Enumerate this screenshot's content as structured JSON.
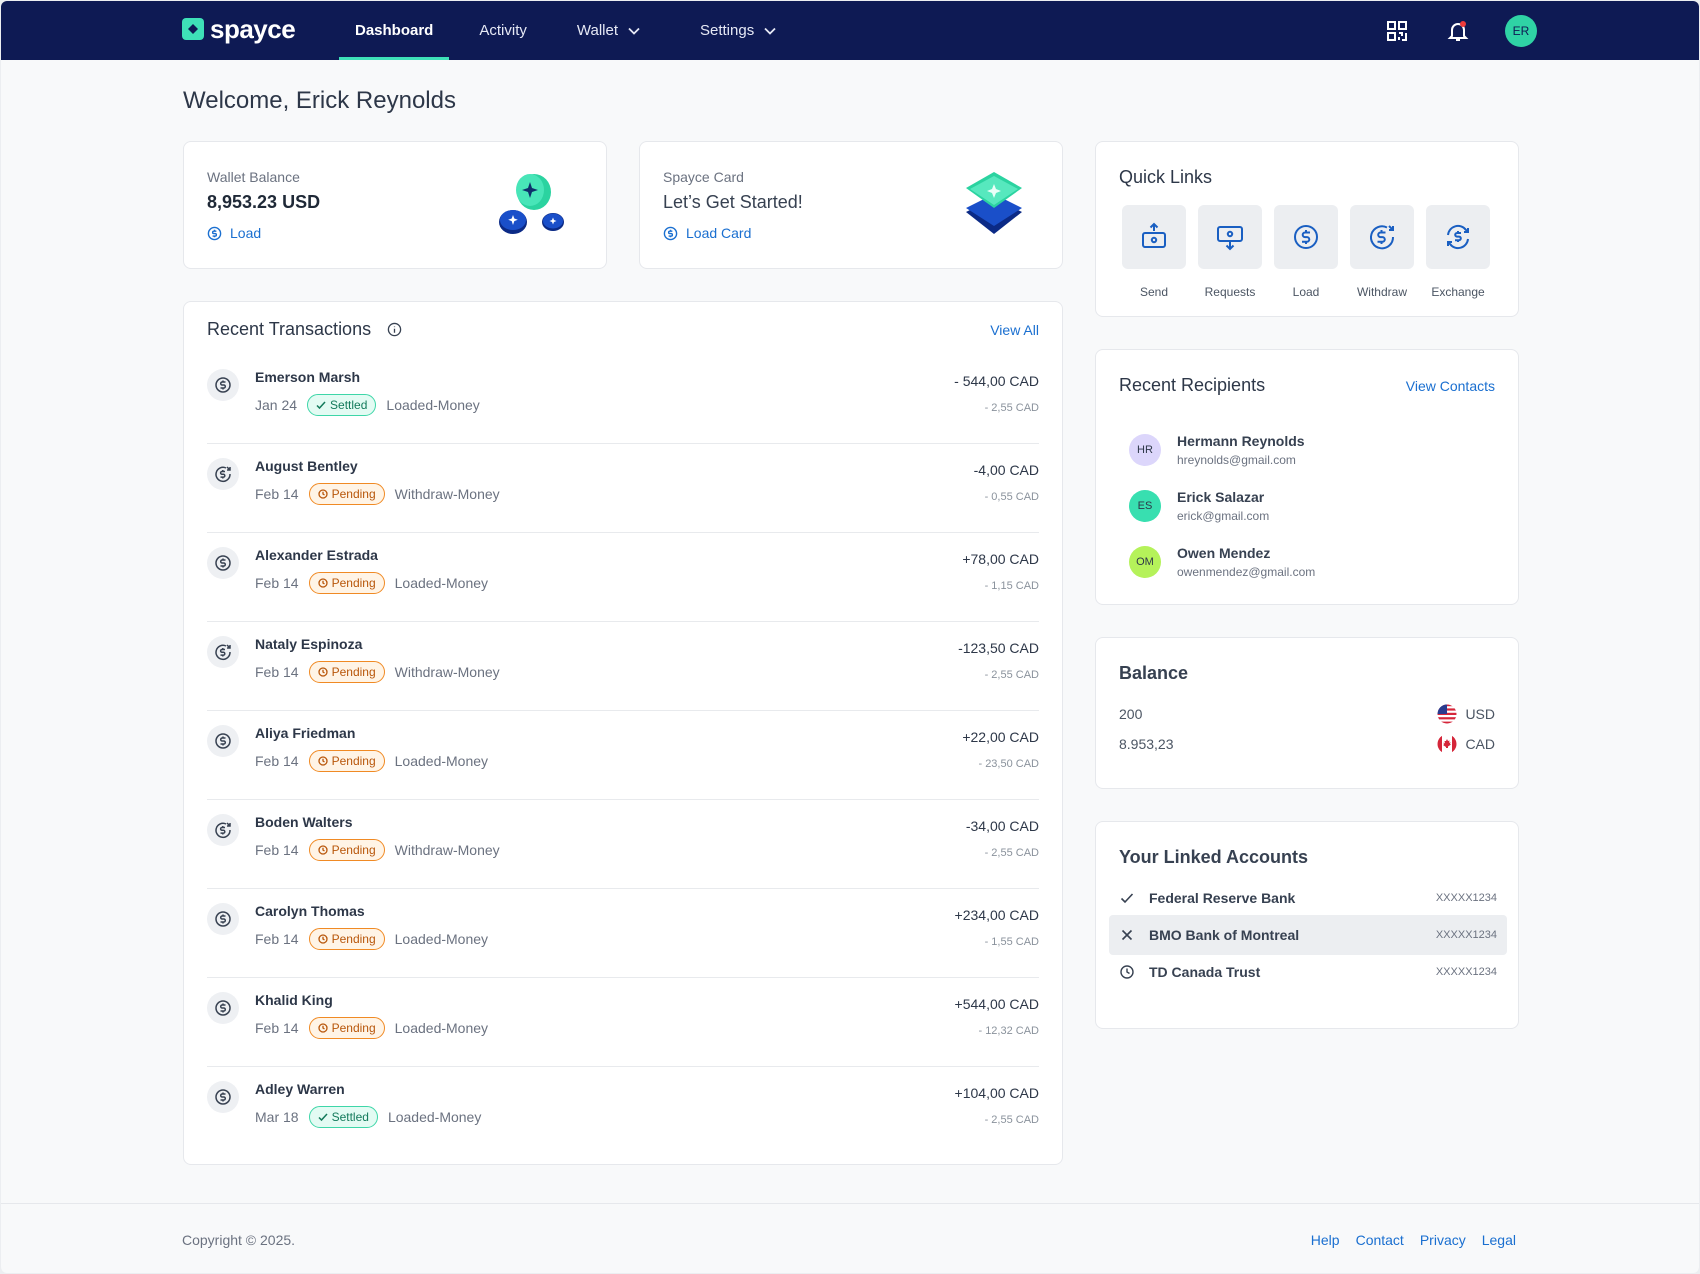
{
  "app": {
    "logo": "spayce"
  },
  "nav": {
    "links": [
      {
        "label": "Dashboard"
      },
      {
        "label": "Activity"
      },
      {
        "label": "Wallet"
      },
      {
        "label": "Settings"
      }
    ],
    "avatar": "ER"
  },
  "welcome": "Welcome, Erick Reynolds",
  "wallet": {
    "label": "Wallet Balance",
    "value": "8,953.23 USD",
    "action": "Load"
  },
  "spayce_card": {
    "label": "Spayce Card",
    "value": "Let’s Get Started!",
    "action": "Load Card"
  },
  "transactions": {
    "title": "Recent Transactions",
    "view_all": "View All",
    "items": [
      {
        "name": "Emerson Marsh",
        "date": "Jan 24",
        "status": "Settled",
        "type": "Loaded-Money",
        "amount": "- 544,00 CAD",
        "fee": "- 2,55 CAD"
      },
      {
        "name": "August Bentley",
        "date": "Feb 14",
        "status": "Pending",
        "type": "Withdraw-Money",
        "amount": "-4,00 CAD",
        "fee": "- 0,55 CAD"
      },
      {
        "name": "Alexander Estrada",
        "date": "Feb 14",
        "status": "Pending",
        "type": "Loaded-Money",
        "amount": "+78,00 CAD",
        "fee": "- 1,15 CAD"
      },
      {
        "name": "Nataly Espinoza",
        "date": "Feb 14",
        "status": "Pending",
        "type": "Withdraw-Money",
        "amount": "-123,50 CAD",
        "fee": "- 2,55 CAD"
      },
      {
        "name": "Aliya Friedman",
        "date": "Feb 14",
        "status": "Pending",
        "type": "Loaded-Money",
        "amount": "+22,00 CAD",
        "fee": "- 23,50 CAD"
      },
      {
        "name": "Boden Walters",
        "date": "Feb 14",
        "status": "Pending",
        "type": "Withdraw-Money",
        "amount": "-34,00 CAD",
        "fee": "- 2,55 CAD"
      },
      {
        "name": "Carolyn Thomas",
        "date": "Feb 14",
        "status": "Pending",
        "type": "Loaded-Money",
        "amount": "+234,00 CAD",
        "fee": "- 1,55 CAD"
      },
      {
        "name": "Khalid King",
        "date": "Feb 14",
        "status": "Pending",
        "type": "Loaded-Money",
        "amount": "+544,00 CAD",
        "fee": "- 12,32 CAD"
      },
      {
        "name": "Adley Warren",
        "date": "Mar 18",
        "status": "Settled",
        "type": "Loaded-Money",
        "amount": "+104,00 CAD",
        "fee": "- 2,55 CAD"
      }
    ]
  },
  "quick_links": {
    "title": "Quick Links",
    "items": [
      {
        "label": "Send",
        "icon": "send-icon"
      },
      {
        "label": "Requests",
        "icon": "requests-icon"
      },
      {
        "label": "Load",
        "icon": "load-icon"
      },
      {
        "label": "Withdraw",
        "icon": "withdraw-icon"
      },
      {
        "label": "Exchange",
        "icon": "exchange-icon"
      }
    ]
  },
  "recipients": {
    "title": "Recent Recipients",
    "view_contacts": "View Contacts",
    "items": [
      {
        "initials": "HR",
        "name": "Hermann Reynolds",
        "email": "hreynolds@gmail.com",
        "color": "#dcd6fb"
      },
      {
        "initials": "ES",
        "name": "Erick Salazar",
        "email": "erick@gmail.com",
        "color": "#38dfb0"
      },
      {
        "initials": "OM",
        "name": "Owen Mendez",
        "email": "owenmendez@gmail.com",
        "color": "#b5f25a"
      }
    ]
  },
  "balance": {
    "title": "Balance",
    "rows": [
      {
        "amount": "200",
        "currency": "USD",
        "flag": "us-flag-icon"
      },
      {
        "amount": "8.953,23",
        "currency": "CAD",
        "flag": "ca-flag-icon"
      }
    ]
  },
  "linked_accounts": {
    "title": "Your Linked Accounts",
    "items": [
      {
        "name": "Federal Reserve Bank",
        "number": "XXXXX1234",
        "status_icon": "check-icon"
      },
      {
        "name": "BMO Bank of Montreal",
        "number": "XXXXX1234",
        "status_icon": "close-icon"
      },
      {
        "name": "TD Canada Trust",
        "number": "XXXXX1234",
        "status_icon": "clock-icon"
      }
    ]
  },
  "footer": {
    "copyright": "Copyright © 2025.",
    "links": [
      "Help",
      "Contact",
      "Privacy",
      "Legal"
    ]
  },
  "colors": {
    "nav_bg": "#0e1a54",
    "accent": "#3ee0b8",
    "link": "#1a6fd0",
    "pending": "#f08a24",
    "settled": "#3ed6a8"
  }
}
